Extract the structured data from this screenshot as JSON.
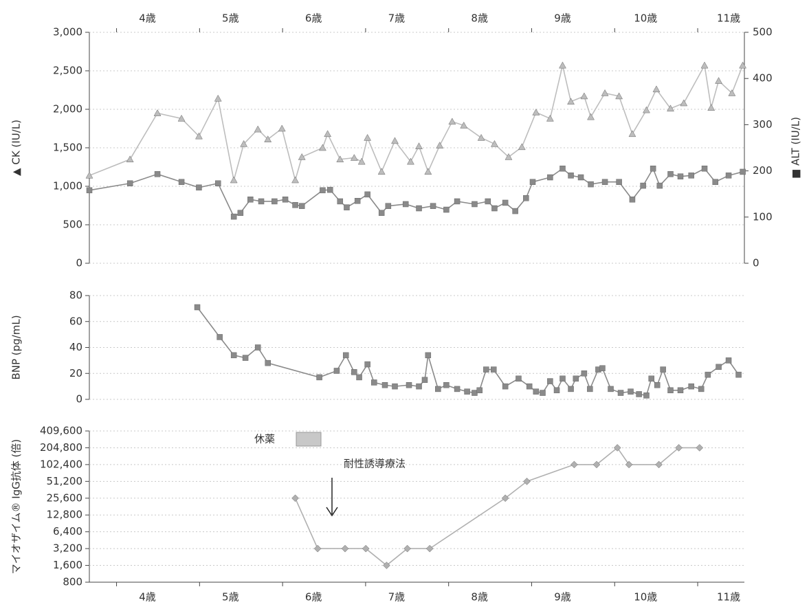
{
  "chart_data": [
    {
      "type": "line",
      "y_label": "▲ CK (IU/L)",
      "y2_label": "■ ALT (IU/L)",
      "xlim": [
        3.3,
        11.19
      ],
      "xticks": [
        {
          "value": 4,
          "label": "4歳"
        },
        {
          "value": 5,
          "label": "5歳"
        },
        {
          "value": 6,
          "label": "6歳"
        },
        {
          "value": 7,
          "label": "7歳"
        },
        {
          "value": 8,
          "label": "8歳"
        },
        {
          "value": 9,
          "label": "9歳"
        },
        {
          "value": 10,
          "label": "10歳"
        },
        {
          "value": 11,
          "label": "11歳"
        }
      ],
      "ylim": [
        0,
        3000
      ],
      "yticks": [
        0,
        500,
        {
          "value": 1000,
          "label": "1,000"
        },
        {
          "value": 1500,
          "label": "1,500"
        },
        {
          "value": 2000,
          "label": "2,000"
        },
        {
          "value": 2500,
          "label": "2,500"
        },
        {
          "value": 3000,
          "label": "3,000"
        }
      ],
      "y2lim": [
        0,
        500
      ],
      "y2ticks": [
        0,
        100,
        200,
        300,
        400,
        500
      ],
      "grid": true,
      "series": [
        {
          "name": "CK",
          "color": "#bdbdbd",
          "marker": "triangle",
          "x": [
            3.3,
            3.79,
            4.12,
            4.41,
            4.62,
            4.85,
            5.04,
            5.16,
            5.33,
            5.45,
            5.62,
            5.78,
            5.86,
            6.11,
            6.17,
            6.32,
            6.49,
            6.58,
            6.65,
            6.82,
            6.98,
            7.17,
            7.27,
            7.38,
            7.52,
            7.67,
            7.81,
            8.02,
            8.18,
            8.35,
            8.51,
            8.68,
            8.85,
            9.0,
            9.1,
            9.26,
            9.34,
            9.51,
            9.68,
            9.84,
            10.01,
            10.13,
            10.3,
            10.46,
            10.71,
            10.79,
            10.88,
            11.04,
            11.17
          ],
          "values": [
            1140,
            1350,
            1950,
            1880,
            1650,
            2140,
            1080,
            1550,
            1740,
            1610,
            1750,
            1080,
            1380,
            1500,
            1680,
            1350,
            1370,
            1320,
            1630,
            1190,
            1590,
            1320,
            1520,
            1190,
            1530,
            1840,
            1790,
            1630,
            1550,
            1380,
            1510,
            1960,
            1880,
            2570,
            2100,
            2170,
            1900,
            2210,
            2170,
            1680,
            1990,
            2260,
            2010,
            2080,
            2570,
            2020,
            2370,
            2210,
            2570
          ]
        },
        {
          "name": "ALT",
          "color": "#8a8a8a",
          "marker": "square",
          "axis": "y2",
          "x": [
            3.3,
            3.79,
            4.12,
            4.41,
            4.62,
            4.85,
            5.04,
            5.12,
            5.24,
            5.37,
            5.53,
            5.66,
            5.78,
            5.86,
            6.11,
            6.2,
            6.32,
            6.4,
            6.53,
            6.65,
            6.82,
            6.9,
            7.11,
            7.27,
            7.44,
            7.6,
            7.73,
            7.94,
            8.1,
            8.18,
            8.31,
            8.43,
            8.56,
            8.64,
            8.85,
            9.0,
            9.1,
            9.22,
            9.34,
            9.51,
            9.68,
            9.84,
            9.97,
            10.09,
            10.17,
            10.3,
            10.42,
            10.55,
            10.71,
            10.84,
            11.0,
            11.17
          ],
          "values": [
            158,
            173,
            193,
            176,
            164,
            173,
            101,
            109,
            138,
            134,
            134,
            138,
            126,
            124,
            158,
            159,
            134,
            121,
            135,
            149,
            109,
            124,
            128,
            119,
            124,
            116,
            134,
            128,
            134,
            119,
            131,
            113,
            141,
            176,
            186,
            205,
            190,
            186,
            171,
            176,
            176,
            138,
            168,
            205,
            168,
            193,
            188,
            190,
            205,
            176,
            190,
            198
          ]
        }
      ]
    },
    {
      "type": "line",
      "y_label": "BNP (pg/mL)",
      "xlim": [
        3.3,
        11.19
      ],
      "ylim": [
        0,
        80
      ],
      "yticks": [
        0,
        20,
        40,
        60,
        80
      ],
      "grid": true,
      "series": [
        {
          "name": "BNP",
          "color": "#8a8a8a",
          "marker": "square",
          "x": [
            4.6,
            4.87,
            5.04,
            5.18,
            5.33,
            5.45,
            6.07,
            6.28,
            6.39,
            6.49,
            6.55,
            6.65,
            6.73,
            6.86,
            6.98,
            7.15,
            7.27,
            7.34,
            7.38,
            7.5,
            7.6,
            7.73,
            7.85,
            7.94,
            8.0,
            8.08,
            8.17,
            8.31,
            8.47,
            8.6,
            8.68,
            8.76,
            8.85,
            8.93,
            9.0,
            9.1,
            9.16,
            9.26,
            9.33,
            9.43,
            9.48,
            9.58,
            9.7,
            9.82,
            9.92,
            10.01,
            10.07,
            10.14,
            10.21,
            10.3,
            10.42,
            10.55,
            10.67,
            10.75,
            10.88,
            11.0,
            11.12
          ],
          "values": [
            71,
            48,
            34,
            32,
            40,
            28,
            17,
            22,
            34,
            21,
            17,
            27,
            13,
            11,
            10,
            11,
            10,
            15,
            34,
            8,
            11,
            8,
            6,
            5,
            7,
            23,
            23,
            10,
            16,
            10,
            6,
            5,
            14,
            7,
            16,
            8,
            16,
            20,
            8,
            23,
            24,
            8,
            5,
            6,
            4,
            3,
            16,
            11,
            23,
            7,
            7,
            10,
            8,
            19,
            25,
            30,
            19
          ]
        }
      ]
    },
    {
      "type": "line",
      "y_label": "マイオザイム® IgG抗体 (倍)",
      "xlim": [
        3.3,
        11.19
      ],
      "xticks": [
        {
          "value": 4,
          "label": "4歳"
        },
        {
          "value": 5,
          "label": "5歳"
        },
        {
          "value": 6,
          "label": "6歳"
        },
        {
          "value": 7,
          "label": "7歳"
        },
        {
          "value": 8,
          "label": "8歳"
        },
        {
          "value": 9,
          "label": "9歳"
        },
        {
          "value": 10,
          "label": "10歳"
        },
        {
          "value": 11,
          "label": "11歳"
        }
      ],
      "ylog": true,
      "ylim": [
        800,
        409600
      ],
      "yticks": [
        800,
        {
          "value": 1600,
          "label": "1,600"
        },
        {
          "value": 3200,
          "label": "3,200"
        },
        {
          "value": 6400,
          "label": "6,400"
        },
        {
          "value": 12800,
          "label": "12,800"
        },
        {
          "value": 25600,
          "label": "25,600"
        },
        {
          "value": 51200,
          "label": "51,200"
        },
        {
          "value": 102400,
          "label": "102,400"
        },
        {
          "value": 204800,
          "label": "204,800"
        },
        {
          "value": 409600,
          "label": "409,600"
        }
      ],
      "grid": true,
      "annotations": [
        "休薬",
        "耐性誘導療法"
      ],
      "series": [
        {
          "name": "IgG",
          "color": "#b0b0b0",
          "marker": "diamond",
          "x": [
            5.78,
            6.05,
            6.38,
            6.63,
            6.88,
            7.13,
            7.4,
            8.31,
            8.57,
            9.14,
            9.41,
            9.66,
            9.8,
            10.16,
            10.4,
            10.65
          ],
          "values": [
            25600,
            3200,
            3200,
            3200,
            1600,
            3200,
            3200,
            25600,
            51200,
            102400,
            102400,
            204800,
            102400,
            102400,
            204800,
            204800
          ]
        }
      ]
    }
  ]
}
